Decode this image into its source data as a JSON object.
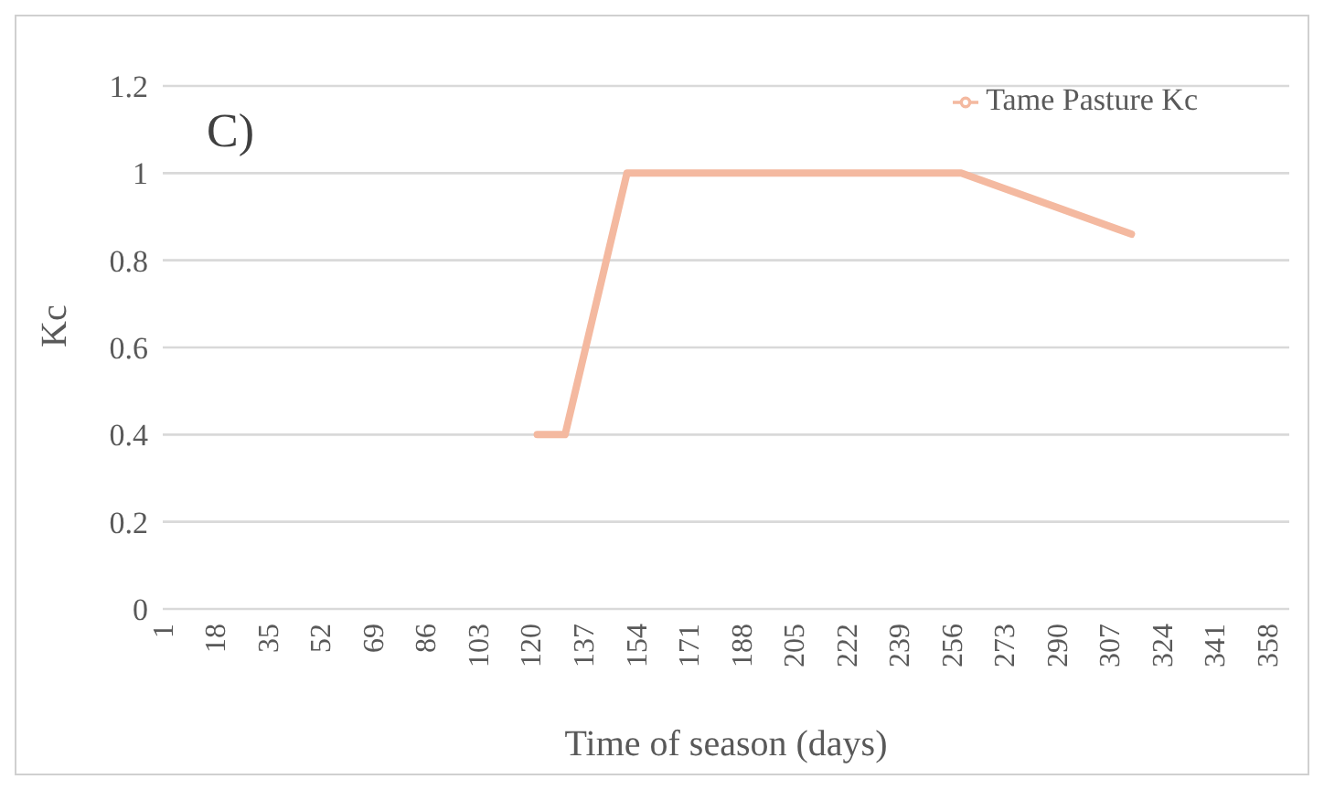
{
  "chart_data": {
    "type": "line",
    "xlabel": "Time of season (days)",
    "ylabel": "Kc",
    "annotations": [
      "C)"
    ],
    "x": [
      122,
      131,
      151,
      259,
      314
    ],
    "series": [
      {
        "name": "Tame Pasture Kc",
        "color": "#f4b9a0",
        "values": [
          0.4,
          0.4,
          1,
          1,
          0.86
        ]
      }
    ],
    "xlim": [
      1,
      365
    ],
    "xticks": [
      1,
      18,
      35,
      52,
      69,
      86,
      103,
      120,
      137,
      154,
      171,
      188,
      205,
      222,
      239,
      256,
      273,
      290,
      307,
      324,
      341,
      358
    ],
    "ylim": [
      0,
      1.2
    ],
    "yticks": [
      0,
      {
        "value": 0.2,
        "label": "0.2"
      },
      {
        "value": 0.4,
        "label": "0.4"
      },
      {
        "value": 0.6,
        "label": "0.6"
      },
      {
        "value": 0.8,
        "label": "0.8"
      },
      1,
      {
        "value": 1.2,
        "label": "1.2"
      }
    ],
    "grid": "y",
    "legend": "top right",
    "marker": "none",
    "line_style": "solid"
  }
}
